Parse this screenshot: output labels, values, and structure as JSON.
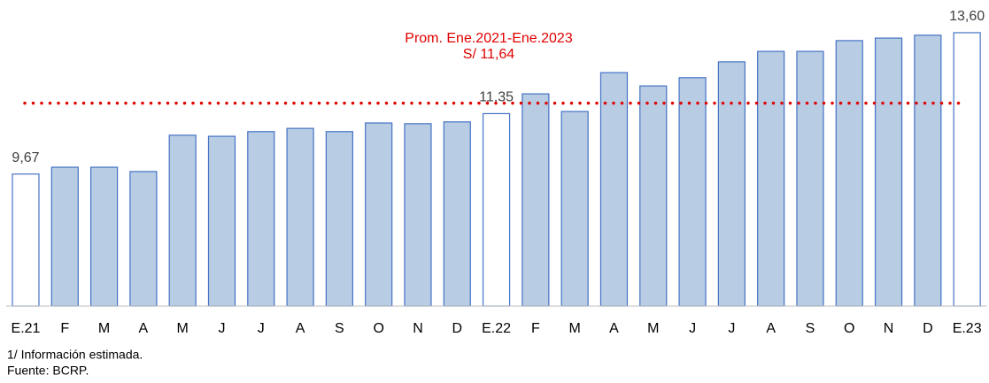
{
  "chart_data": {
    "type": "bar",
    "categories": [
      "E.21",
      "F",
      "M",
      "A",
      "M",
      "J",
      "J",
      "A",
      "S",
      "O",
      "N",
      "D",
      "E.22",
      "F",
      "M",
      "A",
      "M",
      "J",
      "J",
      "A",
      "S",
      "O",
      "N",
      "D",
      "E.23"
    ],
    "values": [
      9.67,
      9.86,
      9.86,
      9.74,
      10.75,
      10.72,
      10.85,
      10.94,
      10.85,
      11.09,
      11.07,
      11.12,
      11.35,
      11.9,
      11.41,
      12.49,
      12.12,
      12.35,
      12.79,
      13.08,
      13.08,
      13.38,
      13.45,
      13.53,
      13.6
    ],
    "value_labels": [
      "9,67",
      null,
      null,
      null,
      null,
      null,
      null,
      null,
      null,
      null,
      null,
      null,
      "11,35",
      null,
      null,
      null,
      null,
      null,
      null,
      null,
      null,
      null,
      null,
      null,
      "13,60"
    ],
    "color": "#b8cce4",
    "edge_color": "#4472c4",
    "labeled_bar_color": "#ffffff",
    "ylim": [
      6,
      14
    ],
    "reference_line": {
      "value": 11.64,
      "color": "#e00000",
      "labels": [
        "Prom. Ene.2021-Ene.2023",
        "S/ 11,64"
      ]
    },
    "footnotes": [
      "1/ Información estimada.",
      "Fuente: BCRP."
    ]
  }
}
